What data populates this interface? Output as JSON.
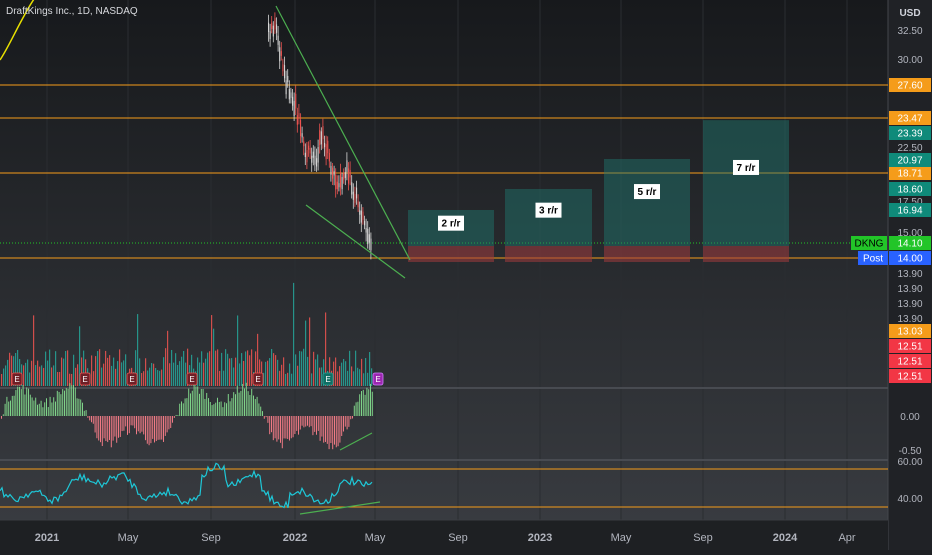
{
  "header": {
    "symbol_title": "DraftKings Inc., 1D, NASDAQ",
    "currency": "USD"
  },
  "chart_data": {
    "type": "candlestick",
    "x_axis_labels": [
      "2021",
      "May",
      "Sep",
      "2022",
      "May",
      "Sep",
      "2023",
      "May",
      "Sep",
      "2024",
      "Apr"
    ],
    "price_ticks": [
      "32.50",
      "30.00",
      "22.50",
      "17.50",
      "15.00",
      "13.90",
      "13.90",
      "13.90",
      "13.90",
      "12.51",
      "12.51"
    ],
    "horizontal_levels": [
      {
        "price": 27.6,
        "label": "27.60",
        "color": "#f59c1a"
      },
      {
        "price": 23.47,
        "label": "23.47",
        "color": "#f59c1a"
      },
      {
        "price": 18.71,
        "label": "18.71",
        "color": "#f59c1a"
      },
      {
        "price": 14.0,
        "label": "14.00",
        "color": "#f59c1a"
      }
    ],
    "badges": [
      {
        "label": "23.39",
        "color": "#0f8a7a"
      },
      {
        "label": "20.97",
        "color": "#0f8a7a"
      },
      {
        "label": "18.60",
        "color": "#0f8a7a"
      },
      {
        "label": "16.94",
        "color": "#0f8a7a"
      },
      {
        "label": "13.03",
        "color": "#f59c1a"
      },
      {
        "label": "12.51",
        "color": "#f23645"
      },
      {
        "label": "12.51",
        "color": "#f23645"
      },
      {
        "label": "12.51",
        "color": "#f23645"
      }
    ],
    "last_price": {
      "ticker": "DKNG",
      "price": "14.10",
      "color": "#22c528"
    },
    "post_market": {
      "label": "Post",
      "price": "14.00",
      "color": "#2962ff"
    },
    "risk_reward_boxes": [
      {
        "label": "2 r/r",
        "target": 16.94,
        "entry": 14.0,
        "stop": 13.03
      },
      {
        "label": "3 r/r",
        "target": 18.6,
        "entry": 14.0,
        "stop": 13.03
      },
      {
        "label": "5 r/r",
        "target": 20.97,
        "entry": 14.0,
        "stop": 13.03
      },
      {
        "label": "7 r/r",
        "target": 23.39,
        "entry": 14.0,
        "stop": 13.03
      }
    ],
    "earnings_markers": [
      "E",
      "E",
      "E",
      "E",
      "E",
      "E",
      "E"
    ],
    "oscillator": {
      "ticks": [
        "0.00",
        "-0.50"
      ]
    },
    "rsi": {
      "ticks": [
        "60.00",
        "40.00"
      ],
      "levels": [
        70,
        30
      ]
    },
    "colors": {
      "up": "#26a69a",
      "down": "#ef5350",
      "level": "#f59c1a",
      "trend": "#4caf50",
      "rsi": "#1ec8d8"
    }
  }
}
